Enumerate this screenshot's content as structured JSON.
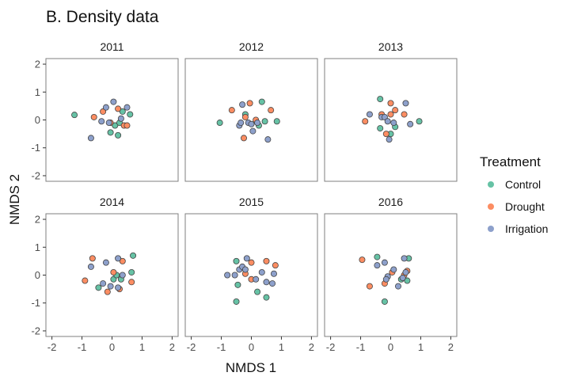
{
  "chart_data": {
    "type": "scatter",
    "title": "B. Density data",
    "xlabel": "NMDS 1",
    "ylabel": "NMDS 2",
    "xlim": [
      -2.2,
      2.2
    ],
    "ylim": [
      -2.2,
      2.2
    ],
    "xticks": [
      "-2",
      "-1",
      "0",
      "1",
      "2"
    ],
    "yticks": [
      "-2",
      "-1",
      "0",
      "1",
      "2"
    ],
    "tick_values": [
      -2,
      -1,
      0,
      1,
      2
    ],
    "grid": false,
    "legend": {
      "title": "Treatment",
      "position": "right",
      "entries": [
        {
          "name": "Control",
          "color": "#66c2a5"
        },
        {
          "name": "Drought",
          "color": "#fc8d62"
        },
        {
          "name": "Irrigation",
          "color": "#8da0cb"
        }
      ]
    },
    "panels": [
      {
        "label": "2011",
        "points": [
          {
            "group": "Control",
            "x": -1.25,
            "y": 0.18
          },
          {
            "group": "Control",
            "x": 0.1,
            "y": -0.2
          },
          {
            "group": "Control",
            "x": 0.2,
            "y": -0.55
          },
          {
            "group": "Control",
            "x": 0.25,
            "y": -0.1
          },
          {
            "group": "Control",
            "x": 0.35,
            "y": 0.3
          },
          {
            "group": "Control",
            "x": 0.6,
            "y": 0.2
          },
          {
            "group": "Control",
            "x": -0.05,
            "y": -0.45
          },
          {
            "group": "Drought",
            "x": -0.6,
            "y": 0.1
          },
          {
            "group": "Drought",
            "x": -0.3,
            "y": 0.3
          },
          {
            "group": "Drought",
            "x": -0.05,
            "y": -0.1
          },
          {
            "group": "Drought",
            "x": 0.2,
            "y": 0.4
          },
          {
            "group": "Drought",
            "x": 0.4,
            "y": -0.2
          },
          {
            "group": "Drought",
            "x": 0.5,
            "y": -0.2
          },
          {
            "group": "Irrigation",
            "x": -0.7,
            "y": -0.65
          },
          {
            "group": "Irrigation",
            "x": -0.35,
            "y": -0.05
          },
          {
            "group": "Irrigation",
            "x": -0.2,
            "y": 0.45
          },
          {
            "group": "Irrigation",
            "x": -0.1,
            "y": -0.1
          },
          {
            "group": "Irrigation",
            "x": 0.05,
            "y": 0.65
          },
          {
            "group": "Irrigation",
            "x": 0.3,
            "y": 0.05
          },
          {
            "group": "Irrigation",
            "x": 0.5,
            "y": 0.45
          }
        ]
      },
      {
        "label": "2012",
        "points": [
          {
            "group": "Control",
            "x": -1.05,
            "y": -0.1
          },
          {
            "group": "Control",
            "x": -0.2,
            "y": 0.2
          },
          {
            "group": "Control",
            "x": 0.25,
            "y": -0.2
          },
          {
            "group": "Control",
            "x": 0.35,
            "y": 0.65
          },
          {
            "group": "Control",
            "x": 0.45,
            "y": -0.05
          },
          {
            "group": "Control",
            "x": 0.85,
            "y": -0.05
          },
          {
            "group": "Drought",
            "x": -0.65,
            "y": 0.35
          },
          {
            "group": "Drought",
            "x": -0.25,
            "y": -0.65
          },
          {
            "group": "Drought",
            "x": -0.2,
            "y": 0.1
          },
          {
            "group": "Drought",
            "x": -0.05,
            "y": 0.6
          },
          {
            "group": "Drought",
            "x": 0.15,
            "y": 0.0
          },
          {
            "group": "Drought",
            "x": 0.65,
            "y": 0.35
          },
          {
            "group": "Irrigation",
            "x": -0.4,
            "y": -0.2
          },
          {
            "group": "Irrigation",
            "x": -0.3,
            "y": 0.55
          },
          {
            "group": "Irrigation",
            "x": -0.35,
            "y": -0.1
          },
          {
            "group": "Irrigation",
            "x": -0.1,
            "y": -0.1
          },
          {
            "group": "Irrigation",
            "x": 0.0,
            "y": -0.15
          },
          {
            "group": "Irrigation",
            "x": 0.05,
            "y": -0.4
          },
          {
            "group": "Irrigation",
            "x": 0.2,
            "y": -0.1
          },
          {
            "group": "Irrigation",
            "x": 0.55,
            "y": -0.7
          }
        ]
      },
      {
        "label": "2013",
        "points": [
          {
            "group": "Control",
            "x": -0.35,
            "y": 0.75
          },
          {
            "group": "Control",
            "x": -0.35,
            "y": -0.3
          },
          {
            "group": "Control",
            "x": 0.15,
            "y": -0.25
          },
          {
            "group": "Control",
            "x": 0.0,
            "y": -0.5
          },
          {
            "group": "Control",
            "x": 0.95,
            "y": -0.05
          },
          {
            "group": "Drought",
            "x": -0.85,
            "y": -0.05
          },
          {
            "group": "Drought",
            "x": -0.3,
            "y": 0.2
          },
          {
            "group": "Drought",
            "x": -0.15,
            "y": -0.5
          },
          {
            "group": "Drought",
            "x": 0.0,
            "y": 0.6
          },
          {
            "group": "Drought",
            "x": 0.0,
            "y": 0.2
          },
          {
            "group": "Drought",
            "x": 0.15,
            "y": 0.35
          },
          {
            "group": "Drought",
            "x": 0.45,
            "y": 0.2
          },
          {
            "group": "Irrigation",
            "x": -0.7,
            "y": 0.2
          },
          {
            "group": "Irrigation",
            "x": -0.3,
            "y": 0.1
          },
          {
            "group": "Irrigation",
            "x": -0.2,
            "y": 0.1
          },
          {
            "group": "Irrigation",
            "x": -0.1,
            "y": -0.05
          },
          {
            "group": "Irrigation",
            "x": -0.05,
            "y": -0.7
          },
          {
            "group": "Irrigation",
            "x": 0.1,
            "y": -0.1
          },
          {
            "group": "Irrigation",
            "x": 0.5,
            "y": 0.6
          },
          {
            "group": "Irrigation",
            "x": 0.65,
            "y": -0.15
          }
        ]
      },
      {
        "label": "2014",
        "points": [
          {
            "group": "Control",
            "x": -0.45,
            "y": -0.45
          },
          {
            "group": "Control",
            "x": 0.05,
            "y": -0.15
          },
          {
            "group": "Control",
            "x": 0.15,
            "y": 0.0
          },
          {
            "group": "Control",
            "x": 0.3,
            "y": -0.15
          },
          {
            "group": "Control",
            "x": 0.65,
            "y": 0.1
          },
          {
            "group": "Control",
            "x": 0.7,
            "y": 0.7
          },
          {
            "group": "Drought",
            "x": -0.65,
            "y": 0.6
          },
          {
            "group": "Drought",
            "x": -0.9,
            "y": -0.2
          },
          {
            "group": "Drought",
            "x": -0.15,
            "y": -0.6
          },
          {
            "group": "Drought",
            "x": 0.05,
            "y": 0.1
          },
          {
            "group": "Drought",
            "x": 0.25,
            "y": -0.5
          },
          {
            "group": "Drought",
            "x": 0.35,
            "y": 0.5
          },
          {
            "group": "Drought",
            "x": 0.65,
            "y": -0.25
          },
          {
            "group": "Irrigation",
            "x": -0.7,
            "y": 0.3
          },
          {
            "group": "Irrigation",
            "x": -0.3,
            "y": -0.3
          },
          {
            "group": "Irrigation",
            "x": -0.2,
            "y": 0.45
          },
          {
            "group": "Irrigation",
            "x": -0.05,
            "y": -0.4
          },
          {
            "group": "Irrigation",
            "x": 0.2,
            "y": -0.45
          },
          {
            "group": "Irrigation",
            "x": 0.2,
            "y": 0.6
          },
          {
            "group": "Irrigation",
            "x": 0.35,
            "y": 0.0
          }
        ]
      },
      {
        "label": "2015",
        "points": [
          {
            "group": "Control",
            "x": -0.5,
            "y": 0.5
          },
          {
            "group": "Control",
            "x": -0.45,
            "y": -0.35
          },
          {
            "group": "Control",
            "x": -0.5,
            "y": -0.95
          },
          {
            "group": "Control",
            "x": 0.2,
            "y": -0.6
          },
          {
            "group": "Control",
            "x": 0.5,
            "y": -0.8
          },
          {
            "group": "Drought",
            "x": -0.2,
            "y": 0.05
          },
          {
            "group": "Drought",
            "x": 0.0,
            "y": 0.45
          },
          {
            "group": "Drought",
            "x": 0.0,
            "y": -0.15
          },
          {
            "group": "Drought",
            "x": 0.5,
            "y": 0.5
          },
          {
            "group": "Drought",
            "x": 0.8,
            "y": 0.35
          },
          {
            "group": "Irrigation",
            "x": -0.8,
            "y": 0.0
          },
          {
            "group": "Irrigation",
            "x": -0.55,
            "y": 0.0
          },
          {
            "group": "Irrigation",
            "x": -0.4,
            "y": 0.2
          },
          {
            "group": "Irrigation",
            "x": -0.3,
            "y": 0.3
          },
          {
            "group": "Irrigation",
            "x": -0.15,
            "y": 0.6
          },
          {
            "group": "Irrigation",
            "x": -0.2,
            "y": 0.2
          },
          {
            "group": "Irrigation",
            "x": 0.15,
            "y": -0.15
          },
          {
            "group": "Irrigation",
            "x": 0.35,
            "y": 0.1
          },
          {
            "group": "Irrigation",
            "x": 0.5,
            "y": -0.25
          },
          {
            "group": "Irrigation",
            "x": 0.7,
            "y": -0.3
          },
          {
            "group": "Irrigation",
            "x": 0.75,
            "y": 0.05
          }
        ]
      },
      {
        "label": "2016",
        "points": [
          {
            "group": "Control",
            "x": -0.45,
            "y": 0.65
          },
          {
            "group": "Control",
            "x": -0.2,
            "y": -0.95
          },
          {
            "group": "Control",
            "x": 0.35,
            "y": -0.15
          },
          {
            "group": "Control",
            "x": 0.55,
            "y": -0.2
          },
          {
            "group": "Control",
            "x": 0.6,
            "y": 0.6
          },
          {
            "group": "Drought",
            "x": -0.95,
            "y": 0.55
          },
          {
            "group": "Drought",
            "x": -0.7,
            "y": -0.4
          },
          {
            "group": "Drought",
            "x": -0.2,
            "y": -0.3
          },
          {
            "group": "Drought",
            "x": 0.05,
            "y": 0.1
          },
          {
            "group": "Drought",
            "x": 0.45,
            "y": 0.0
          },
          {
            "group": "Drought",
            "x": 0.55,
            "y": 0.15
          },
          {
            "group": "Irrigation",
            "x": -0.45,
            "y": 0.35
          },
          {
            "group": "Irrigation",
            "x": -0.2,
            "y": 0.45
          },
          {
            "group": "Irrigation",
            "x": -0.1,
            "y": -0.05
          },
          {
            "group": "Irrigation",
            "x": -0.15,
            "y": -0.15
          },
          {
            "group": "Irrigation",
            "x": 0.1,
            "y": 0.2
          },
          {
            "group": "Irrigation",
            "x": 0.25,
            "y": -0.4
          },
          {
            "group": "Irrigation",
            "x": 0.4,
            "y": -0.1
          },
          {
            "group": "Irrigation",
            "x": 0.45,
            "y": 0.6
          },
          {
            "group": "Irrigation",
            "x": 0.5,
            "y": 0.1
          }
        ]
      }
    ]
  }
}
